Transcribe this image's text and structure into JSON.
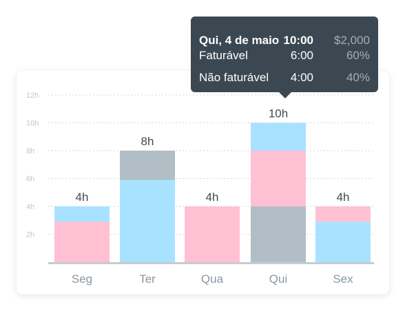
{
  "chart_data": {
    "type": "bar",
    "stacked": true,
    "categories": [
      "Seg",
      "Ter",
      "Qua",
      "Qui",
      "Sex"
    ],
    "series": [
      {
        "color": "#ffc0d3",
        "values": [
          2.9,
          0,
          4,
          4,
          1.1
        ]
      },
      {
        "color": "#a8e2fe",
        "values": [
          1.1,
          5.9,
          0,
          2,
          2.9
        ]
      },
      {
        "color": "#b1bec5",
        "values": [
          0,
          2.1,
          0,
          4,
          0
        ]
      }
    ],
    "stack_order": [
      [
        0,
        1,
        2
      ],
      [
        1,
        2,
        0
      ],
      [
        0,
        1,
        2
      ],
      [
        2,
        0,
        1
      ],
      [
        1,
        0,
        2
      ]
    ],
    "totals": [
      "4h",
      "8h",
      "4h",
      "10h",
      "4h"
    ],
    "y_ticks": [
      "2h",
      "4h",
      "6h",
      "8h",
      "10h",
      "12h"
    ],
    "ylim": [
      0,
      12
    ],
    "grid": true
  },
  "tooltip": {
    "date": "Qui, 4 de maio",
    "total": "10:00",
    "amount": "$2,000",
    "billable_label": "Faturável",
    "billable_time": "6:00",
    "billable_pct": "60%",
    "nonbillable_label": "Não faturável",
    "nonbillable_time": "4:00",
    "nonbillable_pct": "40%"
  },
  "colors": {
    "grid": "#d0d6da",
    "axis": "#c5ccd1",
    "tick_text": "#c0c7cc",
    "category_text": "#8a96a0",
    "total_text": "#3f4a52",
    "tooltip_bg": "#3c4851"
  }
}
